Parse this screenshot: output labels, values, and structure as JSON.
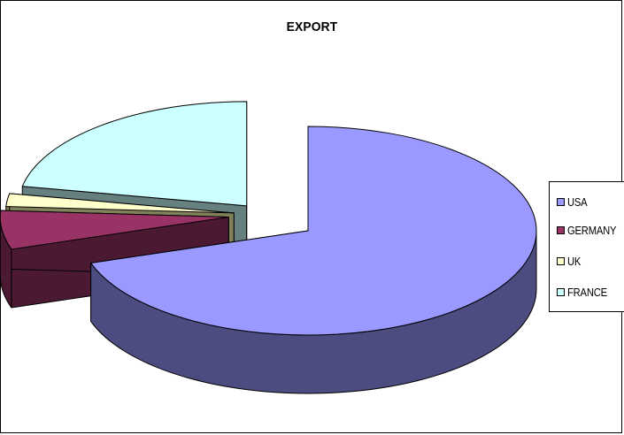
{
  "chart_data": {
    "type": "pie",
    "title": "EXPORT",
    "style": "3d-exploded",
    "legend_position": "right",
    "categories": [
      "USA",
      "GERMANY",
      "UK",
      "FRANCE"
    ],
    "values": [
      70,
      6,
      2,
      22
    ],
    "colors": [
      "#9999FF",
      "#993366",
      "#FFFFCC",
      "#CCFFFF"
    ],
    "side_colors": [
      "#4C4C80",
      "#4C1933",
      "#80805A",
      "#668080"
    ]
  }
}
